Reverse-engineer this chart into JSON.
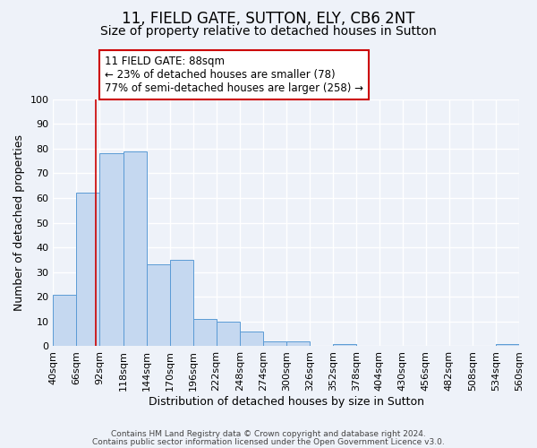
{
  "title": "11, FIELD GATE, SUTTON, ELY, CB6 2NT",
  "subtitle": "Size of property relative to detached houses in Sutton",
  "xlabel": "Distribution of detached houses by size in Sutton",
  "ylabel": "Number of detached properties",
  "bar_edges": [
    40,
    66,
    92,
    118,
    144,
    170,
    196,
    222,
    248,
    274,
    300,
    326,
    352,
    378,
    404,
    430,
    456,
    482,
    508,
    534,
    560
  ],
  "bar_heights": [
    21,
    62,
    78,
    79,
    33,
    35,
    11,
    10,
    6,
    2,
    2,
    0,
    1,
    0,
    0,
    0,
    0,
    0,
    0,
    1
  ],
  "bar_color": "#c5d8f0",
  "bar_edgecolor": "#5b9bd5",
  "ylim": [
    0,
    100
  ],
  "yticks": [
    0,
    10,
    20,
    30,
    40,
    50,
    60,
    70,
    80,
    90,
    100
  ],
  "vline_x": 88,
  "vline_color": "#cc0000",
  "annotation_text_line1": "11 FIELD GATE: 88sqm",
  "annotation_text_line2": "← 23% of detached houses are smaller (78)",
  "annotation_text_line3": "77% of semi-detached houses are larger (258) →",
  "annotation_box_edgecolor": "#cc0000",
  "footnote1": "Contains HM Land Registry data © Crown copyright and database right 2024.",
  "footnote2": "Contains public sector information licensed under the Open Government Licence v3.0.",
  "background_color": "#eef2f9",
  "plot_background": "#eef2f9",
  "grid_color": "#ffffff",
  "title_fontsize": 12,
  "subtitle_fontsize": 10,
  "xlabel_fontsize": 9,
  "ylabel_fontsize": 9,
  "tick_label_fontsize": 8,
  "annotation_fontsize": 8.5,
  "footnote_fontsize": 6.5
}
